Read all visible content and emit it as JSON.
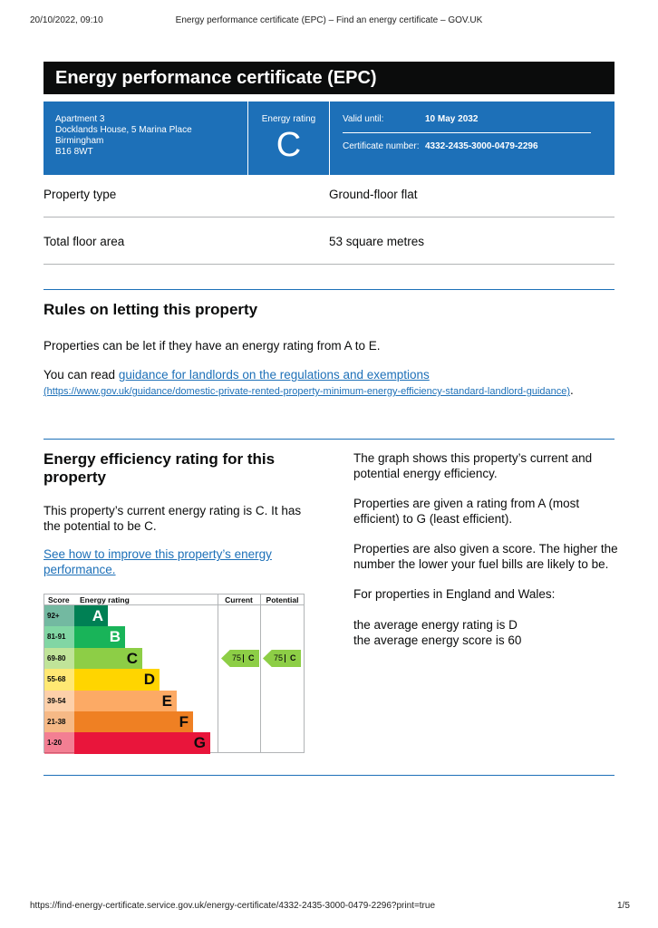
{
  "print_header": {
    "date": "20/10/2022, 09:10",
    "title": "Energy performance certificate (EPC) – Find an energy certificate – GOV.UK"
  },
  "banner": {
    "title": "Energy performance certificate (EPC)"
  },
  "summary": {
    "address": [
      "Apartment 3",
      "Docklands House, 5 Marina Place",
      "Birmingham",
      "B16 8WT"
    ],
    "rating_label": "Energy rating",
    "rating": "C",
    "valid_label": "Valid until:",
    "valid_date": "10 May 2032",
    "cert_label": "Certificate number:",
    "cert_number": "4332-2435-3000-0479-2296"
  },
  "details": [
    {
      "label": "Property type",
      "value": "Ground-floor flat"
    },
    {
      "label": "Total floor area",
      "value": "53 square metres"
    }
  ],
  "rules": {
    "heading": "Rules on letting this property",
    "p1": "Properties can be let if they have an energy rating from A to E.",
    "p2_before": "You can read ",
    "link": "guidance for landlords on the regulations and exemptions",
    "url": "(https://www.gov.uk/guidance/domestic-private-rented-property-minimum-energy-efficiency-standard-landlord-guidance)",
    "p2_after": "."
  },
  "efficiency": {
    "heading": "Energy efficiency rating for this property",
    "p1": "This property’s current energy rating is C. It has the potential to be C.",
    "link": "See how to improve this property’s energy performance.",
    "right": [
      "The graph shows this property’s current and potential energy efficiency.",
      "Properties are given a rating from A (most efficient) to G (least efficient).",
      "Properties are also given a score. The higher the number the lower your fuel bills are likely to be.",
      "For properties in England and Wales:"
    ],
    "averages": [
      "the average energy rating is D",
      "the average energy score is 60"
    ]
  },
  "epc_chart": {
    "headers": [
      "Score",
      "Energy rating",
      "Current",
      "Potential"
    ],
    "bands": [
      {
        "score": "92+",
        "letter": "A",
        "color": "#008054"
      },
      {
        "score": "81-91",
        "letter": "B",
        "color": "#19b459"
      },
      {
        "score": "69-80",
        "letter": "C",
        "color": "#8dce46"
      },
      {
        "score": "55-68",
        "letter": "D",
        "color": "#ffd500"
      },
      {
        "score": "39-54",
        "letter": "E",
        "color": "#fcaa65"
      },
      {
        "score": "21-38",
        "letter": "F",
        "color": "#ef8023"
      },
      {
        "score": "1-20",
        "letter": "G",
        "color": "#e9153b"
      }
    ],
    "current": {
      "score": "75",
      "letter": "C"
    },
    "potential": {
      "score": "75",
      "letter": "C"
    }
  },
  "print_footer": {
    "url": "https://find-energy-certificate.service.gov.uk/energy-certificate/4332-2435-3000-0479-2296?print=true",
    "page": "1/5"
  }
}
